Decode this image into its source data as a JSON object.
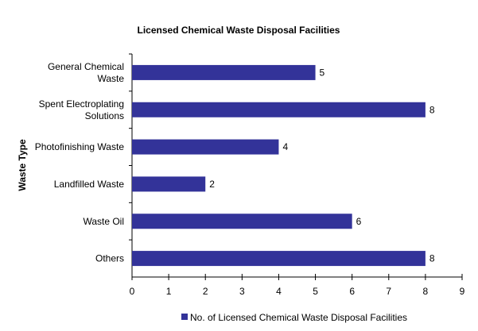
{
  "chart_data": {
    "type": "bar",
    "orientation": "horizontal",
    "title": "Licensed Chemical Waste Disposal Facilities",
    "xlabel": "",
    "ylabel": "Waste Type",
    "categories": [
      [
        "General Chemical",
        "Waste"
      ],
      [
        "Spent Electroplating",
        "Solutions"
      ],
      [
        "Photofinishing Waste"
      ],
      [
        "Landfilled Waste"
      ],
      [
        "Waste Oil"
      ],
      [
        "Others"
      ]
    ],
    "series": [
      {
        "name": "No. of Licensed Chemical Waste Disposal Facilities",
        "values": [
          5,
          8,
          4,
          2,
          6,
          8
        ],
        "color": "#333399"
      }
    ],
    "xlim": [
      0,
      9
    ],
    "xticks": [
      0,
      1,
      2,
      3,
      4,
      5,
      6,
      7,
      8,
      9
    ],
    "grid": false,
    "legend_position": "bottom",
    "data_labels": true
  }
}
